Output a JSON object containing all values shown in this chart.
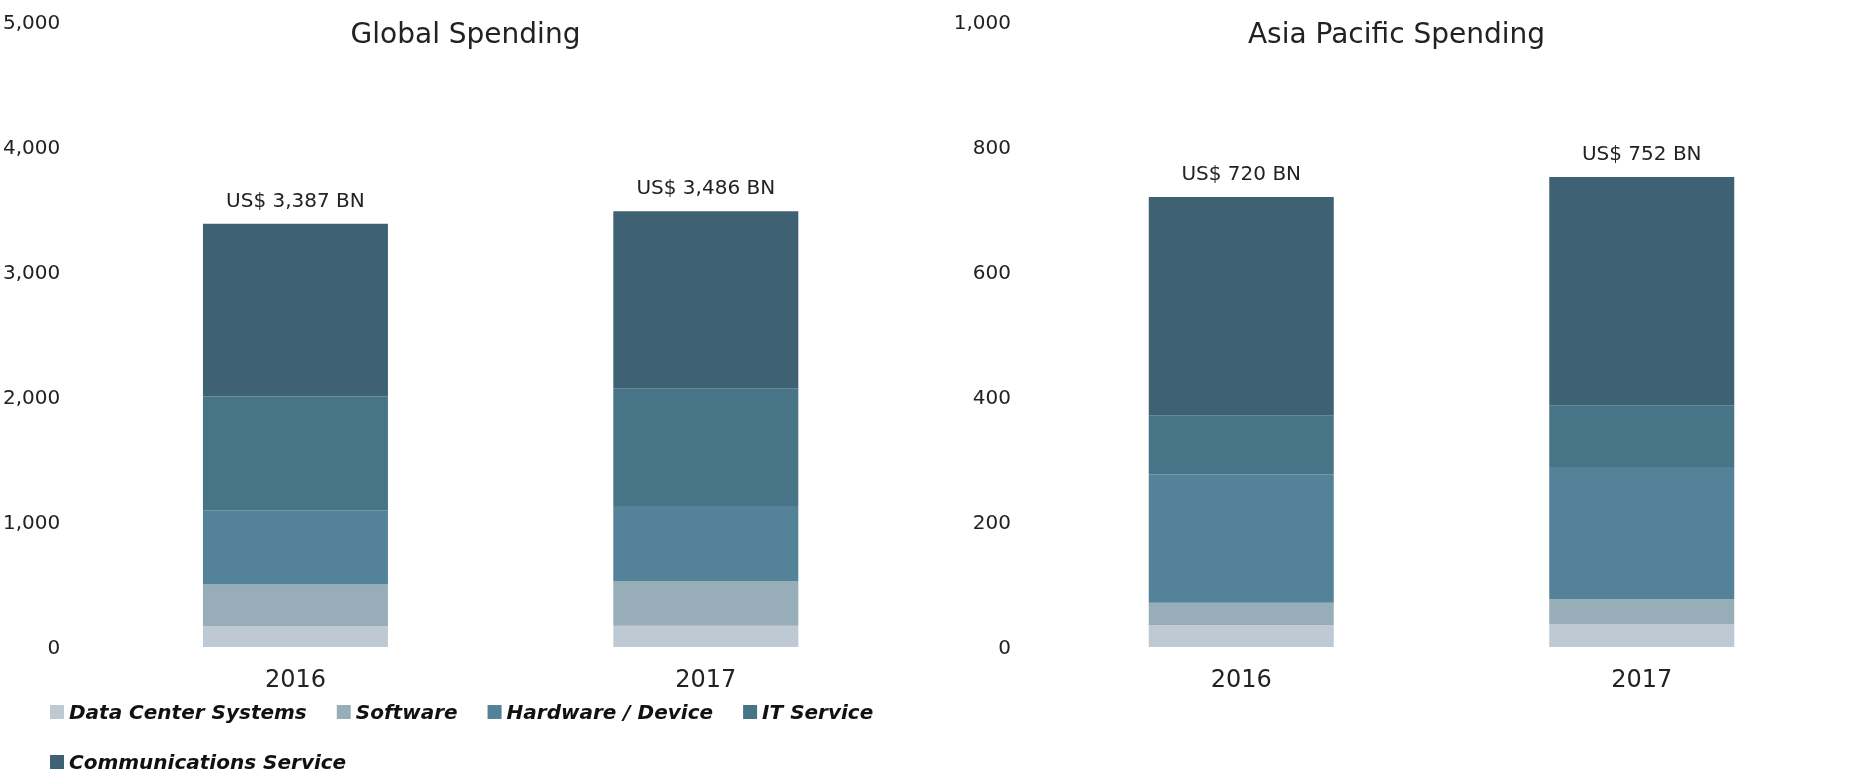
{
  "chart_data": [
    {
      "type": "bar",
      "title": "Global Spending",
      "stacked": true,
      "categories": [
        "2016",
        "2017"
      ],
      "ylim": [
        0,
        5000
      ],
      "yticks": [
        {
          "value": 0,
          "label": "0"
        },
        {
          "value": 1000,
          "label": "1,000"
        },
        {
          "value": 2000,
          "label": "2,000"
        },
        {
          "value": 3000,
          "label": "3,000"
        },
        {
          "value": 4000,
          "label": "4,000"
        },
        {
          "value": 5000,
          "label": "5,000"
        }
      ],
      "grid": false,
      "legend": "bottom left",
      "totals": [
        "US$ 3,387 BN",
        "US$ 3,486 BN"
      ],
      "series": [
        {
          "name": "Data Center Systems",
          "color": "#bec9d3",
          "values": [
            167,
            171
          ]
        },
        {
          "name": "Software",
          "color": "#97adb8",
          "values": [
            333,
            357
          ]
        },
        {
          "name": "Hardware / Device",
          "color": "#548299",
          "values": [
            595,
            600
          ]
        },
        {
          "name": "IT Service",
          "color": "#477487",
          "values": [
            909,
            943
          ]
        },
        {
          "name": "Communications Service",
          "color": "#3e6173",
          "values": [
            1383,
            1415
          ]
        }
      ]
    },
    {
      "type": "bar",
      "title": "Asia Pacific Spending",
      "stacked": true,
      "categories": [
        "2016",
        "2017"
      ],
      "ylim": [
        0,
        1000
      ],
      "yticks": [
        {
          "value": 0,
          "label": "0"
        },
        {
          "value": 200,
          "label": "200"
        },
        {
          "value": 400,
          "label": "400"
        },
        {
          "value": 600,
          "label": "600"
        },
        {
          "value": 800,
          "label": "800"
        },
        {
          "value": 1000,
          "label": "1,000"
        }
      ],
      "grid": false,
      "totals": [
        "US$ 720 BN",
        "US$ 752 BN"
      ],
      "series": [
        {
          "color": "#bec9d3",
          "values": [
            35,
            37
          ]
        },
        {
          "color": "#97adb8",
          "values": [
            36,
            40
          ]
        },
        {
          "color": "#548299",
          "values": [
            205,
            211
          ]
        },
        {
          "color": "#477487",
          "values": [
            95,
            99
          ]
        },
        {
          "color": "#3e6173",
          "values": [
            349,
            365
          ]
        }
      ]
    }
  ]
}
